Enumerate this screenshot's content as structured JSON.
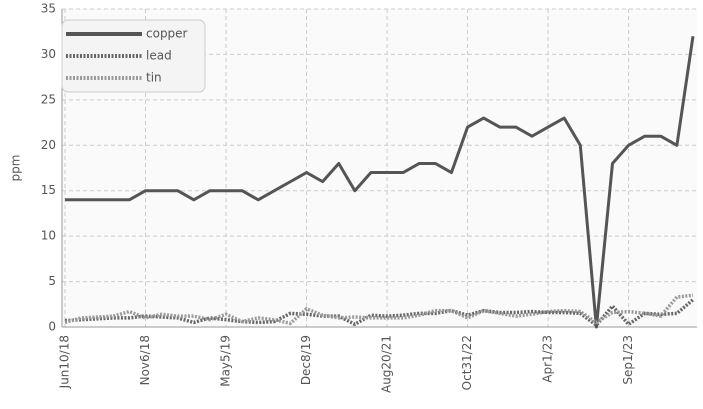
{
  "chart_data": {
    "type": "line",
    "y_label": "ppm",
    "categories": [
      "Jun10/18",
      null,
      null,
      null,
      null,
      "Nov6/18",
      null,
      null,
      null,
      null,
      "May5/19",
      null,
      null,
      null,
      null,
      "Dec8/19",
      null,
      null,
      null,
      null,
      "Aug20/21",
      null,
      null,
      null,
      null,
      "Oct31/22",
      null,
      null,
      null,
      null,
      "Apr1/23",
      null,
      null,
      null,
      null,
      "Sep1/23",
      null,
      null,
      null,
      null
    ],
    "series": [
      {
        "name": "copper",
        "color": "#555555",
        "dash": "solid",
        "values": [
          14,
          14,
          14,
          14,
          14,
          15,
          15,
          15,
          14,
          15,
          15,
          15,
          14,
          15,
          16,
          17,
          16,
          18,
          15,
          17,
          17,
          17,
          18,
          18,
          17,
          22,
          23,
          22,
          22,
          21,
          22,
          23,
          20,
          0,
          18,
          20,
          21,
          21,
          20,
          32
        ]
      },
      {
        "name": "lead",
        "color": "#666666",
        "dash": "dotted",
        "values": [
          0.7,
          0.8,
          0.9,
          1,
          1,
          1.2,
          1.1,
          1,
          0.5,
          1,
          0.8,
          0.6,
          0.5,
          0.6,
          1.5,
          1.4,
          1.2,
          1.2,
          0.3,
          1.3,
          1.2,
          1.3,
          1.5,
          1.5,
          1.8,
          1.3,
          1.8,
          1.6,
          1.6,
          1.7,
          1.6,
          1.6,
          1.5,
          0.2,
          2.3,
          0.3,
          1.5,
          1.4,
          1.5,
          3
        ]
      },
      {
        "name": "tin",
        "color": "#9a9a9a",
        "dash": "dotted",
        "values": [
          0.5,
          1,
          1.1,
          1.2,
          1.7,
          1,
          1.4,
          1.2,
          1.2,
          0.8,
          1.4,
          0.6,
          1,
          0.8,
          0.4,
          2,
          1.3,
          1,
          1.1,
          1,
          1,
          1,
          1.3,
          1.8,
          1.8,
          1,
          1.8,
          1.5,
          1.2,
          1.4,
          1.7,
          1.8,
          1.7,
          0.5,
          1.6,
          1.7,
          1.5,
          1.2,
          3.3,
          3.5
        ]
      }
    ],
    "ylim": [
      0,
      35
    ],
    "yticks": [
      0,
      5,
      10,
      15,
      20,
      25,
      30,
      35
    ],
    "grid": true,
    "legend": "top-left"
  }
}
